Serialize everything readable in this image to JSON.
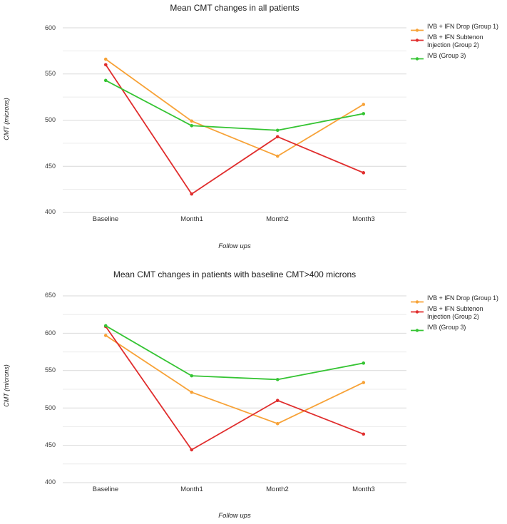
{
  "legend": {
    "items": [
      {
        "label": "IVB + IFN Drop (Group 1)",
        "color": "#F7A237"
      },
      {
        "label": "IVB + IFN Subtenon Injection (Group 2)",
        "color": "#E02D2D"
      },
      {
        "label": "IVB (Group 3)",
        "color": "#35C433"
      }
    ],
    "position": "right"
  },
  "chart_data": [
    {
      "type": "line",
      "title": "Mean CMT changes in all patients",
      "xlabel": "Follow ups",
      "ylabel": "CMT (microns)",
      "categories": [
        "Baseline",
        "Month1",
        "Month2",
        "Month3"
      ],
      "ylim": [
        400,
        600
      ],
      "ytick_labels": [
        "600",
        "550",
        "500",
        "450",
        "400"
      ],
      "gridline_minor_step": 25,
      "grid": true,
      "legend_position": "right",
      "series": [
        {
          "name": "IVB + IFN Drop (Group 1)",
          "color": "#F7A237",
          "values": [
            566,
            499,
            461,
            517
          ]
        },
        {
          "name": "IVB + IFN Subtenon Injection (Group 2)",
          "color": "#E02D2D",
          "values": [
            560,
            420,
            482,
            443
          ]
        },
        {
          "name": "IVB (Group 3)",
          "color": "#35C433",
          "values": [
            543,
            494,
            489,
            507
          ]
        }
      ]
    },
    {
      "type": "line",
      "title": "Mean CMT changes in patients with baseline CMT>400 microns",
      "xlabel": "Follow ups",
      "ylabel": "CMT (microns)",
      "categories": [
        "Baseline",
        "Month1",
        "Month2",
        "Month3"
      ],
      "ylim": [
        400,
        650
      ],
      "ytick_labels": [
        "650",
        "600",
        "550",
        "500",
        "450",
        "400"
      ],
      "gridline_minor_step": 25,
      "grid": true,
      "legend_position": "right",
      "series": [
        {
          "name": "IVB + IFN Drop (Group 1)",
          "color": "#F7A237",
          "values": [
            597,
            521,
            479,
            534
          ]
        },
        {
          "name": "IVB + IFN Subtenon Injection (Group 2)",
          "color": "#E02D2D",
          "values": [
            609,
            444,
            510,
            465
          ]
        },
        {
          "name": "IVB (Group 3)",
          "color": "#35C433",
          "values": [
            610,
            543,
            538,
            560
          ]
        }
      ]
    }
  ],
  "colors": {
    "grid_major": "#d9d9d9",
    "grid_minor": "#ececec",
    "background": "#ffffff"
  }
}
